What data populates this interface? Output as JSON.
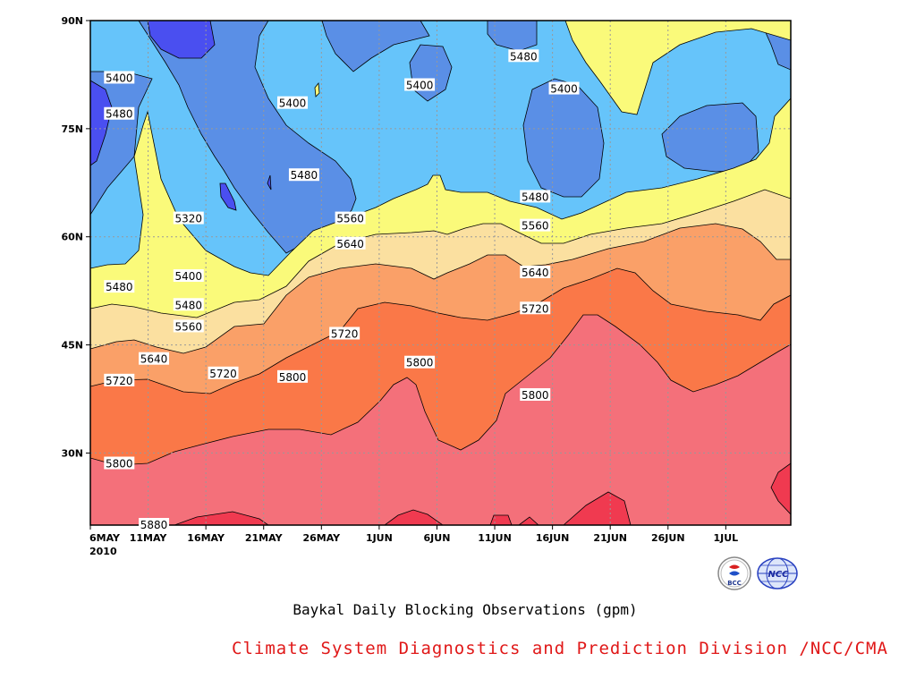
{
  "chart_data": {
    "type": "heatmap",
    "title": "Baykal Daily Blocking Observations (gpm)",
    "x_ticks": [
      "6MAY",
      "11MAY",
      "16MAY",
      "21MAY",
      "26MAY",
      "1JUN",
      "6JUN",
      "11JUN",
      "16JUN",
      "21JUN",
      "26JUN",
      "1JUL"
    ],
    "x_year": "2010",
    "y_ticks": [
      "90N",
      "75N",
      "60N",
      "45N",
      "30N"
    ],
    "y_tick_values": [
      90,
      75,
      60,
      45,
      30
    ],
    "x_range_days": [
      0,
      60
    ],
    "y_range": [
      20,
      90
    ],
    "contour_levels": [
      5320,
      5400,
      5480,
      5560,
      5640,
      5720,
      5800,
      5880
    ],
    "fill_colors": {
      "below_5320": "#4a4ff0",
      "5320_5400": "#5a8fe6",
      "5400_5480": "#66c4fa",
      "5480_5560": "#fafa7a",
      "5560_5640": "#fbe0a0",
      "5640_5720": "#faa068",
      "5720_5800": "#fa7848",
      "5800_5880": "#f4707a",
      "above_5880": "#f03a50"
    },
    "contour_labels": [
      {
        "value": 5400,
        "day": 2.5,
        "lat": 82
      },
      {
        "value": 5480,
        "day": 2.5,
        "lat": 77
      },
      {
        "value": 5320,
        "day": 8.5,
        "lat": 62.5
      },
      {
        "value": 5400,
        "day": 8.5,
        "lat": 54.5
      },
      {
        "value": 5480,
        "day": 8.5,
        "lat": 50.5
      },
      {
        "value": 5560,
        "day": 8.5,
        "lat": 47.5
      },
      {
        "value": 5480,
        "day": 2.5,
        "lat": 53
      },
      {
        "value": 5640,
        "day": 5.5,
        "lat": 43
      },
      {
        "value": 5720,
        "day": 2.5,
        "lat": 40
      },
      {
        "value": 5720,
        "day": 11.5,
        "lat": 41
      },
      {
        "value": 5800,
        "day": 2.5,
        "lat": 28.5
      },
      {
        "value": 5880,
        "day": 5.5,
        "lat": 20
      },
      {
        "value": 5400,
        "day": 17.5,
        "lat": 78.5
      },
      {
        "value": 5480,
        "day": 18.5,
        "lat": 68.5
      },
      {
        "value": 5800,
        "day": 17.5,
        "lat": 40.5
      },
      {
        "value": 5560,
        "day": 22.5,
        "lat": 62.5
      },
      {
        "value": 5640,
        "day": 22.5,
        "lat": 59
      },
      {
        "value": 5720,
        "day": 22,
        "lat": 46.5
      },
      {
        "value": 5400,
        "day": 28.5,
        "lat": 81
      },
      {
        "value": 5800,
        "day": 28.5,
        "lat": 42.5
      },
      {
        "value": 5480,
        "day": 37.5,
        "lat": 85
      },
      {
        "value": 5400,
        "day": 41,
        "lat": 80.5
      },
      {
        "value": 5480,
        "day": 38.5,
        "lat": 65.5
      },
      {
        "value": 5560,
        "day": 38.5,
        "lat": 61.5
      },
      {
        "value": 5640,
        "day": 38.5,
        "lat": 55
      },
      {
        "value": 5720,
        "day": 38.5,
        "lat": 50
      },
      {
        "value": 5800,
        "day": 38.5,
        "lat": 38
      }
    ]
  },
  "caption": "Baykal Daily Blocking Observations (gpm)",
  "credit": {
    "text": "Climate System Diagnostics and Prediction Division /NCC/CMA",
    "color": "#e01818"
  },
  "logos": {
    "bcc_text": "BCC",
    "ncc_text": "NCC",
    "bcc_icon": "bcc-emblem-icon",
    "ncc_icon": "ncc-globe-emblem-icon"
  }
}
